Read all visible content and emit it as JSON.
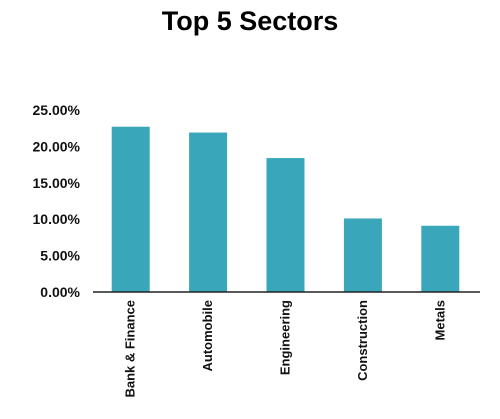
{
  "chart_data": {
    "type": "bar",
    "title": "Top 5 Sectors",
    "categories": [
      "Bank & Finance",
      "Automobile",
      "Engineering",
      "Construction",
      "Metals"
    ],
    "values": [
      22.7,
      21.9,
      18.4,
      10.1,
      9.1
    ],
    "yticks": [
      "0.00%",
      "5.00%",
      "10.00%",
      "15.00%",
      "20.00%",
      "25.00%"
    ],
    "ylim": [
      0,
      25
    ],
    "xlabel": "",
    "ylabel": "",
    "grid": false,
    "legend": "none",
    "bar_color": "#3aa6b9",
    "axis_color": "#222222"
  }
}
